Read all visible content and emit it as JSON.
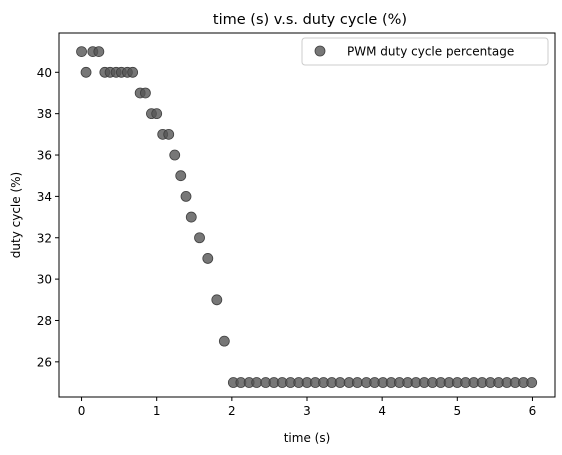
{
  "chart_data": {
    "type": "scatter",
    "title": "time (s) v.s. duty cycle (%)",
    "xlabel": "time (s)",
    "ylabel": "duty cycle (%)",
    "xlim": [
      -0.3,
      6.3
    ],
    "ylim": [
      24.3,
      41.9
    ],
    "xticks": [
      0,
      1,
      2,
      3,
      4,
      5,
      6
    ],
    "yticks": [
      26,
      28,
      30,
      32,
      34,
      36,
      38,
      40
    ],
    "grid": false,
    "legend_position": "top-right",
    "series": [
      {
        "name": "PWM duty cycle percentage",
        "color": "#555555",
        "x": [
          0.0,
          0.06,
          0.15,
          0.23,
          0.31,
          0.38,
          0.46,
          0.53,
          0.61,
          0.68,
          0.78,
          0.85,
          0.93,
          1.0,
          1.08,
          1.16,
          1.24,
          1.32,
          1.39,
          1.46,
          1.57,
          1.68,
          1.8,
          1.9,
          2.02,
          2.12,
          2.23,
          2.33,
          2.45,
          2.56,
          2.67,
          2.78,
          2.89,
          3.0,
          3.11,
          3.22,
          3.33,
          3.44,
          3.56,
          3.67,
          3.79,
          3.9,
          4.01,
          4.12,
          4.23,
          4.34,
          4.45,
          4.56,
          4.67,
          4.78,
          4.89,
          5.0,
          5.11,
          5.22,
          5.33,
          5.44,
          5.55,
          5.66,
          5.77,
          5.88,
          5.99
        ],
        "y": [
          41,
          40,
          41,
          41,
          40,
          40,
          40,
          40,
          40,
          40,
          39,
          39,
          38,
          38,
          37,
          37,
          36,
          35,
          34,
          33,
          32,
          31,
          29,
          27,
          25,
          25,
          25,
          25,
          25,
          25,
          25,
          25,
          25,
          25,
          25,
          25,
          25,
          25,
          25,
          25,
          25,
          25,
          25,
          25,
          25,
          25,
          25,
          25,
          25,
          25,
          25,
          25,
          25,
          25,
          25,
          25,
          25,
          25,
          25,
          25,
          25
        ]
      }
    ]
  }
}
